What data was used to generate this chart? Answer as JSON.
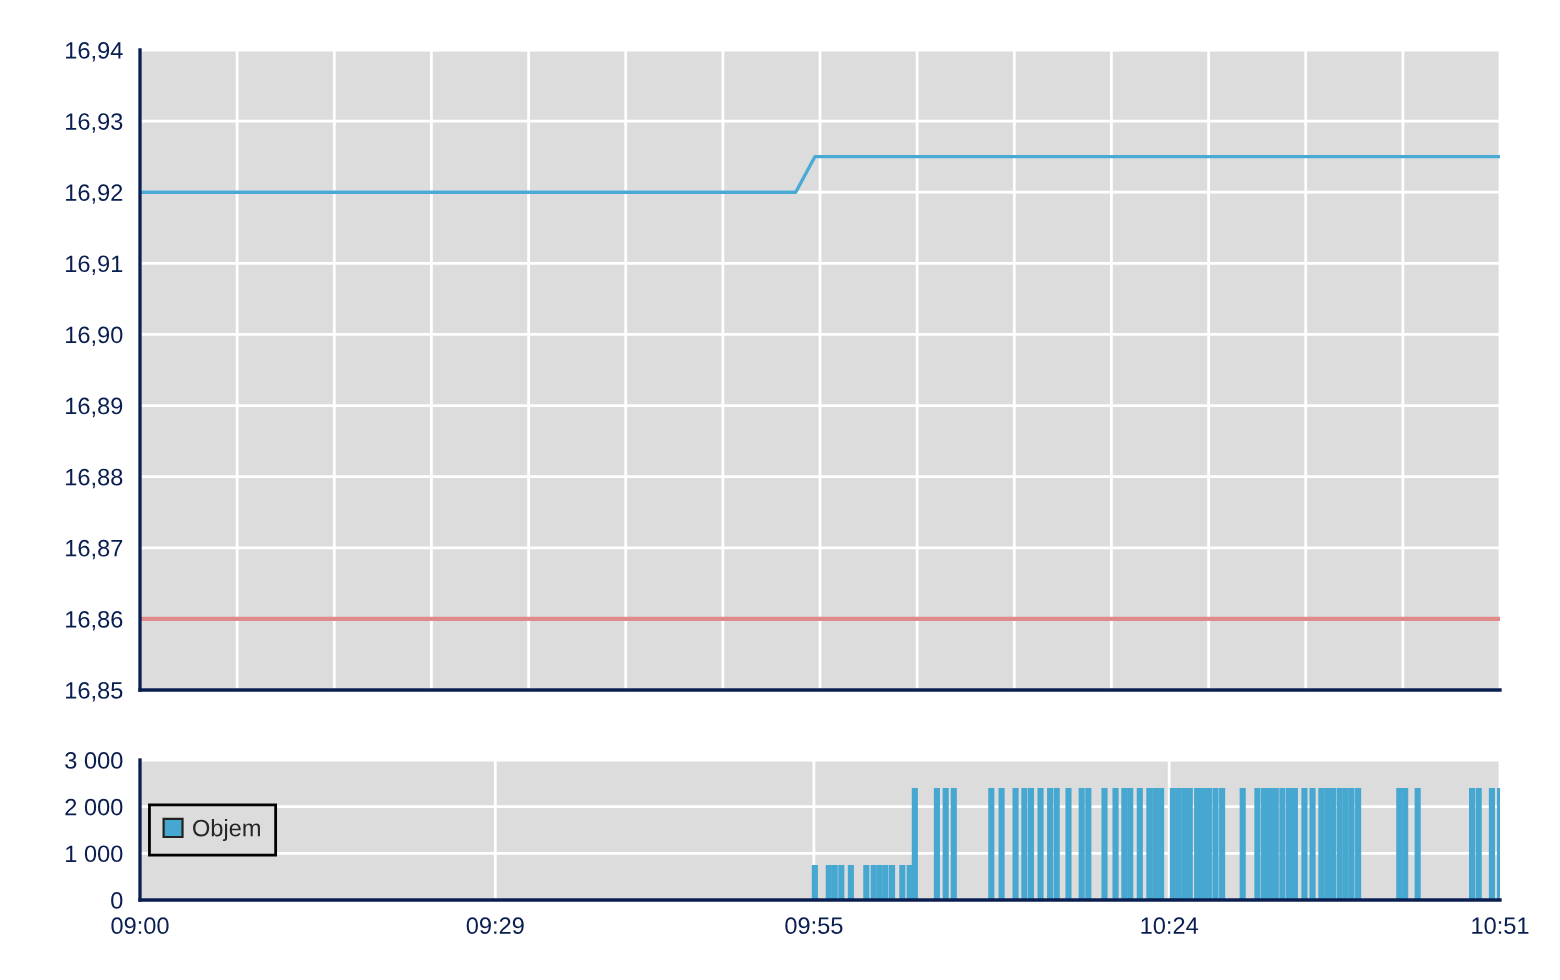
{
  "chart_data": [
    {
      "type": "line",
      "series": [
        {
          "color": "#4aaad6",
          "x": [
            9,
            9.892,
            9.918,
            10.85
          ],
          "values": [
            16.92,
            16.92,
            16.925,
            16.925
          ]
        }
      ],
      "xlim": [
        9,
        10.85
      ],
      "xticks": [
        {
          "value": 9,
          "label": null
        },
        {
          "value": 9.1321,
          "label": null
        },
        {
          "value": 9.2643,
          "label": null
        },
        {
          "value": 9.3964,
          "label": null
        },
        {
          "value": 9.5286,
          "label": null
        },
        {
          "value": 9.6607,
          "label": null
        },
        {
          "value": 9.7929,
          "label": null
        },
        {
          "value": 9.925,
          "label": null
        },
        {
          "value": 10.0571,
          "label": null
        },
        {
          "value": 10.1893,
          "label": null
        },
        {
          "value": 10.3214,
          "label": null
        },
        {
          "value": 10.4536,
          "label": null
        },
        {
          "value": 10.5857,
          "label": null
        },
        {
          "value": 10.7179,
          "label": null
        },
        {
          "value": 10.85,
          "label": null
        }
      ],
      "ylim": [
        16.85,
        16.94
      ],
      "yticks": [
        {
          "value": 16.85,
          "label": "16,85"
        },
        {
          "value": 16.86,
          "label": "16,86"
        },
        {
          "value": 16.87,
          "label": "16,87"
        },
        {
          "value": 16.88,
          "label": "16,88"
        },
        {
          "value": 16.89,
          "label": "16,89"
        },
        {
          "value": 16.9,
          "label": "16,90"
        },
        {
          "value": 16.91,
          "label": "16,91"
        },
        {
          "value": 16.92,
          "label": "16,92"
        },
        {
          "value": 16.93,
          "label": "16,93"
        },
        {
          "value": 16.94,
          "label": "16,94"
        }
      ],
      "ref_lines": [
        {
          "axis": "y",
          "value": 16.86,
          "color": "#e08a8a"
        }
      ],
      "grid": true,
      "tick_labels": "y"
    },
    {
      "type": "bar",
      "series": [
        {
          "name": "Objem",
          "color": "#46a7d0",
          "x": [
            9.918,
            9.937,
            9.945,
            9.954,
            9.967,
            9.988,
            9.998,
            10.006,
            10.014,
            10.023,
            10.037,
            10.047,
            10.054,
            10.084,
            10.096,
            10.107,
            10.158,
            10.172,
            10.191,
            10.203,
            10.212,
            10.225,
            10.238,
            10.247,
            10.263,
            10.281,
            10.29,
            10.312,
            10.327,
            10.339,
            10.347,
            10.36,
            10.373,
            10.381,
            10.389,
            10.405,
            10.413,
            10.421,
            10.428,
            10.438,
            10.446,
            10.454,
            10.463,
            10.472,
            10.5,
            10.52,
            10.529,
            10.537,
            10.545,
            10.554,
            10.563,
            10.571,
            10.584,
            10.595,
            10.607,
            10.615,
            10.623,
            10.632,
            10.64,
            10.648,
            10.657,
            10.713,
            10.721,
            10.738,
            10.812,
            10.821,
            10.839,
            10.85
          ],
          "values": [
            750,
            750,
            750,
            750,
            750,
            750,
            750,
            750,
            750,
            750,
            750,
            750,
            2400,
            2400,
            2400,
            2400,
            2400,
            2400,
            2400,
            2400,
            2400,
            2400,
            2400,
            2400,
            2400,
            2400,
            2400,
            2400,
            2400,
            2400,
            2400,
            2400,
            2400,
            2400,
            2400,
            2400,
            2400,
            2400,
            2400,
            2400,
            2400,
            2400,
            2400,
            2400,
            2400,
            2400,
            2400,
            2400,
            2400,
            2400,
            2400,
            2400,
            2400,
            2400,
            2400,
            2400,
            2400,
            2400,
            2400,
            2400,
            2400,
            2400,
            2400,
            2400,
            2400,
            2400,
            2400,
            2400
          ]
        }
      ],
      "xlim": [
        9,
        10.85
      ],
      "xticks": [
        {
          "value": 9,
          "label": "09:00"
        },
        {
          "value": 9.4833,
          "label": "09:29"
        },
        {
          "value": 9.9167,
          "label": "09:55"
        },
        {
          "value": 10.4,
          "label": "10:24"
        },
        {
          "value": 10.85,
          "label": "10:51"
        }
      ],
      "ylim": [
        0,
        3000
      ],
      "yticks": [
        0,
        {
          "value": 1000,
          "label": "1 000"
        },
        {
          "value": 2000,
          "label": "2 000"
        },
        {
          "value": 3000,
          "label": "3 000"
        }
      ],
      "grid": true,
      "legend": "left"
    }
  ]
}
